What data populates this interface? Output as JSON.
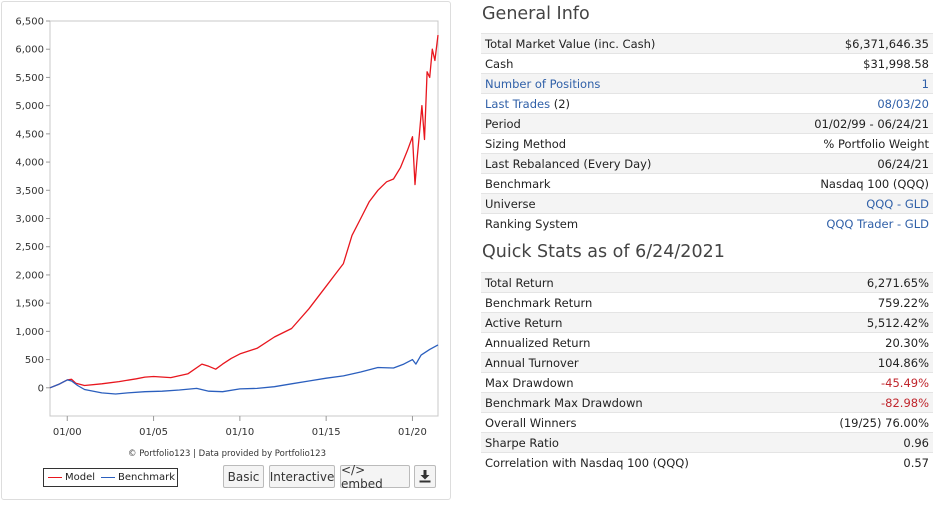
{
  "chart_data": {
    "type": "line",
    "x_tick_labels": [
      "01/00",
      "01/05",
      "01/10",
      "01/15",
      "01/20"
    ],
    "x_tick_years": [
      2000,
      2005,
      2010,
      2015,
      2020
    ],
    "x_range": [
      1999.0,
      2021.48
    ],
    "ylim": [
      -500,
      6500
    ],
    "y_ticks": [
      0,
      500,
      1000,
      1500,
      2000,
      2500,
      3000,
      3500,
      4000,
      4500,
      5000,
      5500,
      6000,
      6500
    ],
    "y_tick_labels": [
      "0",
      "500",
      "1,000",
      "1,500",
      "2,000",
      "2,500",
      "3,000",
      "3,500",
      "4,000",
      "4,500",
      "5,000",
      "5,500",
      "6,000",
      "6,500"
    ],
    "grid": false,
    "legend_position": "bottom-left",
    "series": [
      {
        "name": "Model",
        "color": "#e8161e",
        "x": [
          1999.0,
          1999.5,
          2000.0,
          2000.25,
          2000.5,
          2001.0,
          2002.0,
          2003.0,
          2004.0,
          2004.5,
          2005.0,
          2006.0,
          2007.0,
          2007.8,
          2008.2,
          2008.6,
          2009.0,
          2009.5,
          2010.0,
          2011.0,
          2012.0,
          2013.0,
          2014.0,
          2015.0,
          2015.5,
          2016.0,
          2016.5,
          2017.0,
          2017.5,
          2018.0,
          2018.5,
          2018.9,
          2019.3,
          2019.7,
          2020.0,
          2020.15,
          2020.25,
          2020.4,
          2020.55,
          2020.7,
          2020.85,
          2021.0,
          2021.15,
          2021.3,
          2021.48
        ],
        "values": [
          0,
          60,
          140,
          150,
          80,
          40,
          70,
          110,
          160,
          190,
          200,
          180,
          250,
          420,
          380,
          330,
          420,
          520,
          600,
          700,
          900,
          1050,
          1400,
          1800,
          2000,
          2200,
          2700,
          3000,
          3300,
          3500,
          3650,
          3700,
          3900,
          4200,
          4450,
          3600,
          4000,
          4500,
          5000,
          4400,
          5600,
          5500,
          6000,
          5800,
          6250
        ]
      },
      {
        "name": "Benchmark",
        "color": "#2b5fbe",
        "x": [
          1999.0,
          1999.5,
          2000.0,
          2000.25,
          2000.6,
          2001.0,
          2002.0,
          2002.8,
          2003.5,
          2004.5,
          2005.5,
          2006.5,
          2007.5,
          2008.2,
          2009.0,
          2010.0,
          2011.0,
          2012.0,
          2013.0,
          2014.0,
          2015.0,
          2016.0,
          2017.0,
          2018.0,
          2018.9,
          2019.5,
          2020.0,
          2020.2,
          2020.5,
          2021.0,
          2021.48
        ],
        "values": [
          0,
          60,
          140,
          120,
          40,
          -30,
          -90,
          -110,
          -90,
          -70,
          -60,
          -40,
          -10,
          -60,
          -70,
          -20,
          -10,
          20,
          70,
          120,
          170,
          210,
          280,
          360,
          350,
          420,
          500,
          420,
          580,
          680,
          760
        ]
      }
    ]
  },
  "chart_footer": {
    "credit": "© Portfolio123 | Data provided by Portfolio123",
    "buttons": {
      "basic": "Basic",
      "interactive": "Interactive",
      "embed": "</> embed"
    },
    "download_icon": "download-icon"
  },
  "general_info": {
    "title": "General Info",
    "rows": [
      {
        "label": "Total Market Value (inc. Cash)",
        "value": "$6,371,646.35"
      },
      {
        "label": "Cash",
        "value": "$31,998.58"
      },
      {
        "label": "Number of Positions",
        "value": "1"
      },
      {
        "label": "Last Trades",
        "label_suffix": " (2)",
        "value": "08/03/20"
      },
      {
        "label": "Period",
        "value": "01/02/99 - 06/24/21"
      },
      {
        "label": "Sizing Method",
        "value": "% Portfolio Weight"
      },
      {
        "label": "Last Rebalanced (Every Day)",
        "value": "06/24/21"
      },
      {
        "label": "Benchmark",
        "value": "Nasdaq 100 (QQQ)"
      },
      {
        "label": "Universe",
        "value": "QQQ - GLD"
      },
      {
        "label": "Ranking System",
        "value": "QQQ Trader - GLD"
      }
    ]
  },
  "quick_stats": {
    "title": "Quick Stats as of 6/24/2021",
    "rows": [
      {
        "label": "Total Return",
        "value": "6,271.65%"
      },
      {
        "label": "Benchmark Return",
        "value": "759.22%"
      },
      {
        "label": "Active Return",
        "value": "5,512.42%"
      },
      {
        "label": "Annualized Return",
        "value": "20.30%"
      },
      {
        "label": "Annual Turnover",
        "value": "104.86%"
      },
      {
        "label": "Max Drawdown",
        "value": "-45.49%"
      },
      {
        "label": "Benchmark Max Drawdown",
        "value": "-82.98%"
      },
      {
        "label": "Overall Winners",
        "value": "(19/25) 76.00%"
      },
      {
        "label": "Sharpe Ratio",
        "value": "0.96"
      },
      {
        "label": "Correlation with Nasdaq 100 (QQQ)",
        "value": "0.57"
      }
    ]
  },
  "colors": {
    "link": "#3060a8",
    "negative": "#c0262d",
    "model": "#e8161e",
    "benchmark": "#2b5fbe"
  }
}
